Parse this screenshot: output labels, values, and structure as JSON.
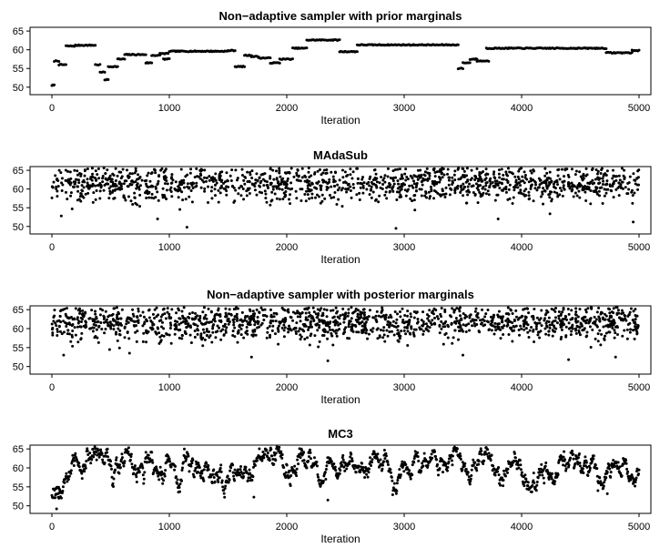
{
  "chart_data": [
    {
      "type": "scatter",
      "title": "Non−adaptive sampler with prior marginals",
      "xlabel": "Iteration",
      "ylabel": "",
      "xlim": [
        0,
        5000
      ],
      "ylim": [
        48,
        66
      ],
      "x_ticks": [
        "0",
        "1000",
        "2000",
        "3000",
        "4000",
        "5000"
      ],
      "y_ticks": [
        "50",
        "55",
        "60",
        "65"
      ],
      "grid": false,
      "legend": "none",
      "point_color": "#000000",
      "pattern": "step",
      "segments": [
        {
          "x": [
            0,
            20
          ],
          "y": 50.5
        },
        {
          "x": [
            20,
            60
          ],
          "y": 57
        },
        {
          "x": [
            60,
            120
          ],
          "y": 56
        },
        {
          "x": [
            120,
            200
          ],
          "y": 61
        },
        {
          "x": [
            200,
            370
          ],
          "y": 61.2
        },
        {
          "x": [
            370,
            410
          ],
          "y": 56
        },
        {
          "x": [
            410,
            450
          ],
          "y": 54
        },
        {
          "x": [
            450,
            480
          ],
          "y": 52
        },
        {
          "x": [
            480,
            560
          ],
          "y": 55.5
        },
        {
          "x": [
            560,
            620
          ],
          "y": 57.5
        },
        {
          "x": [
            620,
            800
          ],
          "y": 58.7
        },
        {
          "x": [
            800,
            850
          ],
          "y": 56.5
        },
        {
          "x": [
            850,
            920
          ],
          "y": 58.5
        },
        {
          "x": [
            920,
            990
          ],
          "y": 59
        },
        {
          "x": [
            950,
            1000
          ],
          "y": 57.5
        },
        {
          "x": [
            1000,
            1500
          ],
          "y": 59.6
        },
        {
          "x": [
            1500,
            1560
          ],
          "y": 59.8
        },
        {
          "x": [
            1560,
            1640
          ],
          "y": 55.5
        },
        {
          "x": [
            1640,
            1700
          ],
          "y": 58.5
        },
        {
          "x": [
            1700,
            1760
          ],
          "y": 58.2
        },
        {
          "x": [
            1760,
            1860
          ],
          "y": 57.8
        },
        {
          "x": [
            1860,
            1940
          ],
          "y": 56.5
        },
        {
          "x": [
            1940,
            2050
          ],
          "y": 57.5
        },
        {
          "x": [
            2050,
            2170
          ],
          "y": 60.4
        },
        {
          "x": [
            2170,
            2450
          ],
          "y": 62.6
        },
        {
          "x": [
            2450,
            2600
          ],
          "y": 59.5
        },
        {
          "x": [
            2600,
            3460
          ],
          "y": 61.3
        },
        {
          "x": [
            3460,
            3500
          ],
          "y": 55
        },
        {
          "x": [
            3500,
            3560
          ],
          "y": 56.5
        },
        {
          "x": [
            3560,
            3620
          ],
          "y": 57.5
        },
        {
          "x": [
            3620,
            3720
          ],
          "y": 57
        },
        {
          "x": [
            3700,
            4720
          ],
          "y": 60.4
        },
        {
          "x": [
            4720,
            4940
          ],
          "y": 59.2
        },
        {
          "x": [
            4940,
            5000
          ],
          "y": 59.8
        }
      ]
    },
    {
      "type": "scatter",
      "title": "MAdaSub",
      "xlabel": "Iteration",
      "ylabel": "",
      "xlim": [
        0,
        5000
      ],
      "ylim": [
        48,
        66
      ],
      "x_ticks": [
        "0",
        "1000",
        "2000",
        "3000",
        "4000",
        "5000"
      ],
      "y_ticks": [
        "50",
        "55",
        "60",
        "65"
      ],
      "grid": false,
      "legend": "none",
      "point_color": "#000000",
      "pattern": "noise",
      "n_points": 1400,
      "center": 61.5,
      "spread": 3.2,
      "max": 65.6,
      "outliers": [
        [
          80,
          52.8
        ],
        [
          900,
          52
        ],
        [
          1150,
          49.8
        ],
        [
          2930,
          49.5
        ],
        [
          3800,
          52
        ],
        [
          4950,
          51.2
        ]
      ]
    },
    {
      "type": "scatter",
      "title": "Non−adaptive sampler with posterior marginals",
      "xlabel": "Iteration",
      "ylabel": "",
      "xlim": [
        0,
        5000
      ],
      "ylim": [
        48,
        66
      ],
      "x_ticks": [
        "0",
        "1000",
        "2000",
        "3000",
        "4000",
        "5000"
      ],
      "y_ticks": [
        "50",
        "55",
        "60",
        "65"
      ],
      "grid": false,
      "legend": "none",
      "point_color": "#000000",
      "pattern": "noise",
      "n_points": 1500,
      "center": 61.5,
      "spread": 3,
      "max": 65.6,
      "outliers": [
        [
          100,
          53
        ],
        [
          1700,
          52.5
        ],
        [
          2350,
          51.5
        ],
        [
          3500,
          53
        ],
        [
          4400,
          51.8
        ],
        [
          4800,
          52.5
        ]
      ]
    },
    {
      "type": "scatter",
      "title": "MC3",
      "xlabel": "Iteration",
      "ylabel": "",
      "xlim": [
        0,
        5000
      ],
      "ylim": [
        48,
        66
      ],
      "x_ticks": [
        "0",
        "1000",
        "2000",
        "3000",
        "4000",
        "5000"
      ],
      "y_ticks": [
        "50",
        "55",
        "60",
        "65"
      ],
      "grid": false,
      "legend": "none",
      "point_color": "#000000",
      "pattern": "walk",
      "n_points": 1300,
      "start": 52,
      "mean": 61,
      "min": 52,
      "max": 65.6,
      "outliers": [
        [
          40,
          49.2
        ],
        [
          30,
          54.5
        ],
        [
          60,
          52
        ],
        [
          1720,
          52.3
        ],
        [
          2350,
          51.5
        ],
        [
          4730,
          53.2
        ],
        [
          4650,
          54
        ]
      ]
    }
  ]
}
